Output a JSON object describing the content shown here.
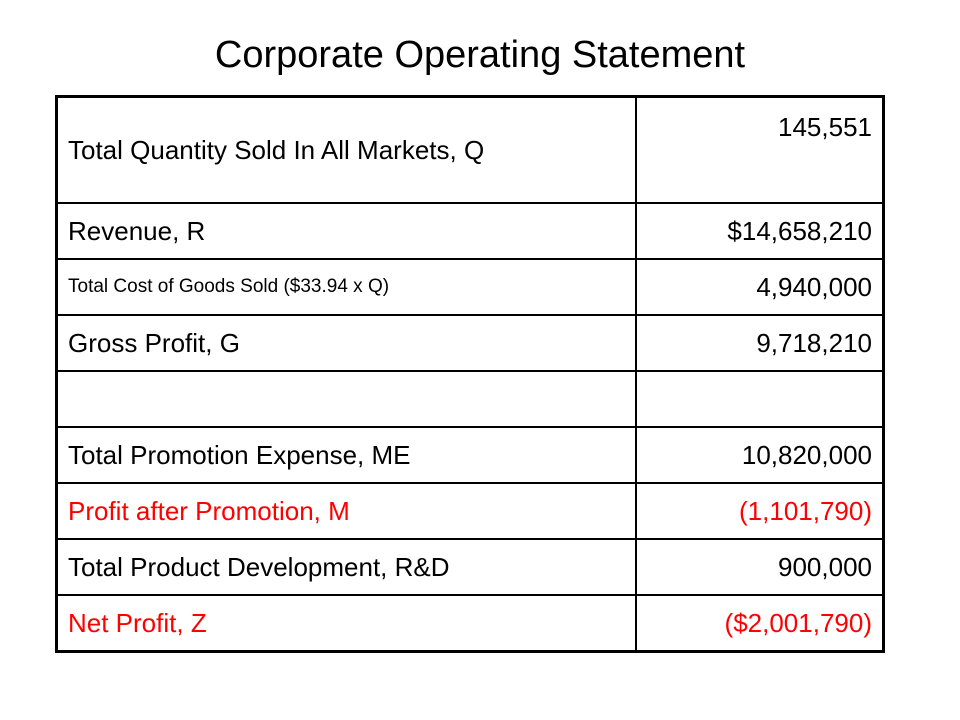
{
  "title": "Corporate Operating Statement",
  "rows": [
    {
      "label": "Total Quantity Sold In All Markets, Q",
      "value": "145,551"
    },
    {
      "label": "Revenue, R",
      "value": "$14,658,210"
    },
    {
      "label": "Total Cost of Goods Sold ($33.94 x Q)",
      "value": "4,940,000"
    },
    {
      "label": "Gross Profit, G",
      "value": "9,718,210"
    },
    {
      "label": "",
      "value": ""
    },
    {
      "label": "Total Promotion Expense, ME",
      "value": "10,820,000"
    },
    {
      "label": "Profit after Promotion, M",
      "value": "(1,101,790)"
    },
    {
      "label": "Total Product Development, R&D",
      "value": "900,000"
    },
    {
      "label": "Net Profit, Z",
      "value": "($2,001,790)"
    }
  ],
  "colors": {
    "negative": "#ff0000",
    "text": "#000000"
  }
}
